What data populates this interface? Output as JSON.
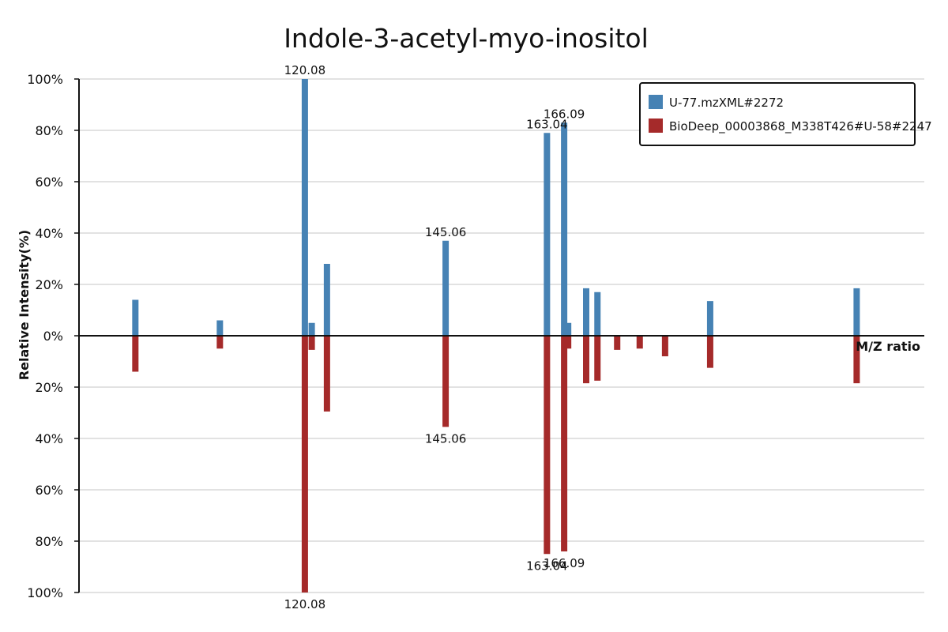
{
  "chart_data": {
    "type": "bar",
    "title": "Indole-3-acetyl-myo-inositol",
    "xlabel": "M/Z ratio",
    "ylabel": "Relative Intensity(%)",
    "ylim_top": [
      0,
      100
    ],
    "ylim_bottom": [
      0,
      100
    ],
    "y_ticks_top": [
      "0%",
      "20%",
      "40%",
      "60%",
      "80%",
      "100%"
    ],
    "y_ticks_bottom": [
      "20%",
      "40%",
      "60%",
      "80%",
      "100%"
    ],
    "grid": true,
    "legend_position": "top-right",
    "colors": {
      "top": "#4682b4",
      "bottom": "#a52a2a"
    },
    "series": [
      {
        "name": "U-77.mzXML#2272",
        "direction": "up",
        "peaks": [
          {
            "mz": 90.0,
            "intensity": 14
          },
          {
            "mz": 105.0,
            "intensity": 6
          },
          {
            "mz": 120.08,
            "intensity": 100,
            "label": "120.08"
          },
          {
            "mz": 121.3,
            "intensity": 5
          },
          {
            "mz": 124.0,
            "intensity": 28
          },
          {
            "mz": 145.06,
            "intensity": 37,
            "label": "145.06"
          },
          {
            "mz": 163.04,
            "intensity": 79,
            "label": "163.04"
          },
          {
            "mz": 166.09,
            "intensity": 83,
            "label": "166.09"
          },
          {
            "mz": 166.8,
            "intensity": 5
          },
          {
            "mz": 170.0,
            "intensity": 18.5
          },
          {
            "mz": 172.0,
            "intensity": 17
          },
          {
            "mz": 192.0,
            "intensity": 13.5
          },
          {
            "mz": 218.0,
            "intensity": 18.5
          }
        ]
      },
      {
        "name": "BioDeep_00003868_M338T426#U-58#2247",
        "direction": "down",
        "peaks": [
          {
            "mz": 90.0,
            "intensity": 14
          },
          {
            "mz": 105.0,
            "intensity": 5
          },
          {
            "mz": 120.08,
            "intensity": 100,
            "label": "120.08"
          },
          {
            "mz": 121.3,
            "intensity": 5.5
          },
          {
            "mz": 124.0,
            "intensity": 29.5
          },
          {
            "mz": 145.06,
            "intensity": 35.5,
            "label": "145.06"
          },
          {
            "mz": 163.04,
            "intensity": 85,
            "label": "163.04"
          },
          {
            "mz": 166.09,
            "intensity": 84,
            "label": "166.09"
          },
          {
            "mz": 166.8,
            "intensity": 5
          },
          {
            "mz": 170.0,
            "intensity": 18.5
          },
          {
            "mz": 172.0,
            "intensity": 17.5
          },
          {
            "mz": 175.5,
            "intensity": 5.5
          },
          {
            "mz": 179.5,
            "intensity": 5
          },
          {
            "mz": 184.0,
            "intensity": 8
          },
          {
            "mz": 192.0,
            "intensity": 12.5
          },
          {
            "mz": 218.0,
            "intensity": 18.5
          }
        ]
      }
    ]
  }
}
